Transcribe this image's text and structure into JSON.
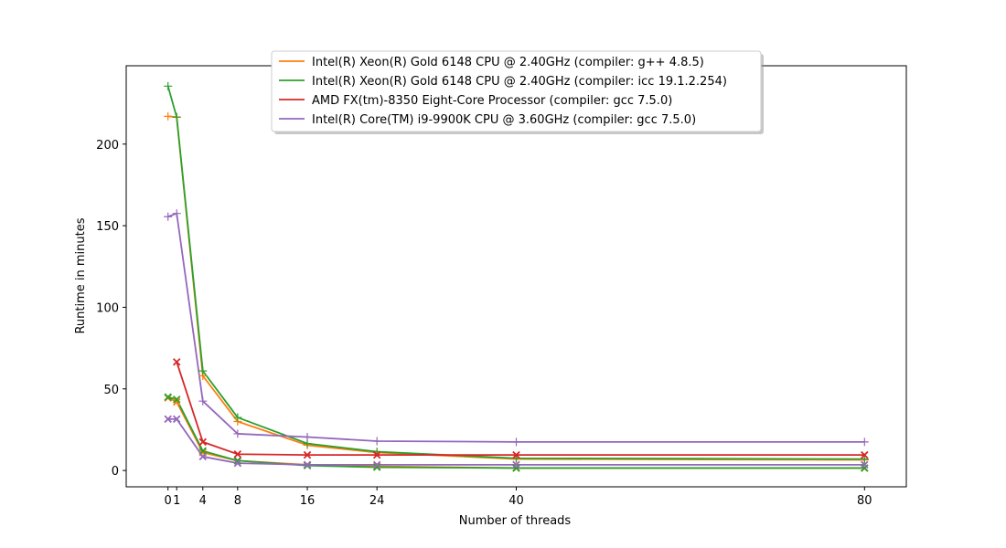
{
  "chart_data": {
    "type": "line",
    "title": "",
    "xlabel": "Number of threads",
    "ylabel": "Runtime in minutes",
    "xlim": [
      -4.8,
      84.8
    ],
    "ylim": [
      -10,
      248
    ],
    "xticks": [
      0,
      1,
      4,
      8,
      16,
      24,
      40,
      80
    ],
    "xtick_labels": [
      "0",
      "1",
      "4",
      "8",
      "16",
      "24",
      "40",
      "80"
    ],
    "yticks": [
      0,
      50,
      100,
      150,
      200
    ],
    "ytick_labels": [
      "0",
      "50",
      "100",
      "150",
      "200"
    ],
    "legend_position": "upper-center",
    "series": [
      {
        "name": "Intel(R) Xeon(R) Gold 6148 CPU @ 2.40GHz (compiler: g++ 4.8.5)",
        "color": "#ff7f0e",
        "plus": {
          "x": [
            0,
            1,
            4,
            8,
            16,
            24,
            40,
            80
          ],
          "y": [
            217,
            216.5,
            58,
            30,
            15.5,
            11,
            7,
            6.5
          ]
        },
        "cross": {
          "x": [
            0,
            1,
            4,
            8,
            16,
            24,
            40,
            80
          ],
          "y": [
            44.5,
            42,
            11,
            6,
            3.5,
            2.5,
            1.5,
            1.5
          ]
        }
      },
      {
        "name": "Intel(R) Xeon(R) Gold 6148 CPU @ 2.40GHz (compiler: icc 19.1.2.254)",
        "color": "#2ca02c",
        "plus": {
          "x": [
            0,
            1,
            4,
            8,
            16,
            24,
            40,
            80
          ],
          "y": [
            235.5,
            216.5,
            61,
            32.5,
            16.5,
            11.5,
            7.5,
            7
          ]
        },
        "cross": {
          "x": [
            0,
            1,
            4,
            8,
            16,
            24,
            40,
            80
          ],
          "y": [
            45,
            43.5,
            12,
            6,
            3,
            2,
            1.5,
            1.5
          ]
        }
      },
      {
        "name": "AMD FX(tm)-8350 Eight-Core Processor (compiler: gcc 7.5.0)",
        "color": "#d62728",
        "plus": {
          "x": [],
          "y": []
        },
        "cross": {
          "x": [
            1,
            4,
            8,
            16,
            24,
            40,
            80
          ],
          "y": [
            66.5,
            17.5,
            10,
            9.5,
            9.5,
            9.5,
            9.5
          ]
        }
      },
      {
        "name": "Intel(R) Core(TM) i9-9900K CPU @ 3.60GHz (compiler: gcc 7.5.0)",
        "color": "#9467bd",
        "plus": {
          "x": [
            0,
            1,
            4,
            8,
            16,
            24,
            40,
            80
          ],
          "y": [
            155.5,
            157.5,
            42.5,
            22.5,
            20.5,
            18,
            17.5,
            17.5
          ]
        },
        "cross": {
          "x": [
            0,
            1,
            4,
            8,
            16,
            24,
            40,
            80
          ],
          "y": [
            31.5,
            31.5,
            8.5,
            4.5,
            3.5,
            3.5,
            3.5,
            3.5
          ]
        }
      }
    ]
  }
}
